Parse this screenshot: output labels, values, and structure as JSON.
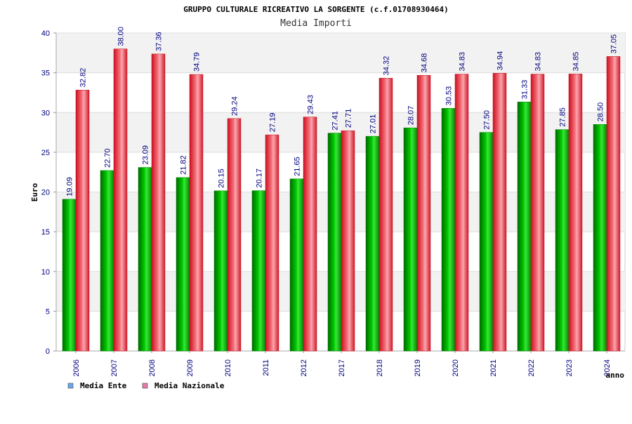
{
  "chart_data": {
    "type": "bar",
    "title": "GRUPPO CULTURALE RICREATIVO LA SORGENTE (c.f.01708930464)",
    "subtitle": "Media Importi",
    "xlabel": "anno",
    "ylabel": "Euro",
    "ylim": [
      0,
      40
    ],
    "yticks": [
      0,
      5,
      10,
      15,
      20,
      25,
      30,
      35,
      40
    ],
    "grid": true,
    "legend_position": "bottom-left",
    "categories": [
      "2006",
      "2007",
      "2008",
      "2009",
      "2010",
      "2011",
      "2012",
      "2017",
      "2018",
      "2019",
      "2020",
      "2021",
      "2022",
      "2023",
      "2024"
    ],
    "series": [
      {
        "name": "Media Ente",
        "color": "#00b400",
        "legend_color": "#6aa8ea",
        "values": [
          19.09,
          22.7,
          23.09,
          21.82,
          20.15,
          20.17,
          21.65,
          27.41,
          27.01,
          28.07,
          30.53,
          27.5,
          31.33,
          27.85,
          28.5
        ],
        "labels": [
          "19.09",
          "22.70",
          "23.09",
          "21.82",
          "20.15",
          "20.17",
          "21.65",
          "27.41",
          "27.01",
          "28.07",
          "30.53",
          "27.50",
          "31.33",
          "27.85",
          "28.50"
        ]
      },
      {
        "name": "Media Nazionale",
        "color": "#e8202e",
        "legend_color": "#e87aa8",
        "values": [
          32.82,
          38.0,
          37.36,
          34.79,
          29.24,
          27.19,
          29.43,
          27.71,
          34.32,
          34.68,
          34.83,
          34.94,
          34.83,
          34.85,
          37.05
        ],
        "labels": [
          "32.82",
          "38.00",
          "37.36",
          "34.79",
          "29.24",
          "27.19",
          "29.43",
          "27.71",
          "34.32",
          "34.68",
          "34.83",
          "34.94",
          "34.83",
          "34.85",
          "37.05"
        ]
      }
    ]
  }
}
